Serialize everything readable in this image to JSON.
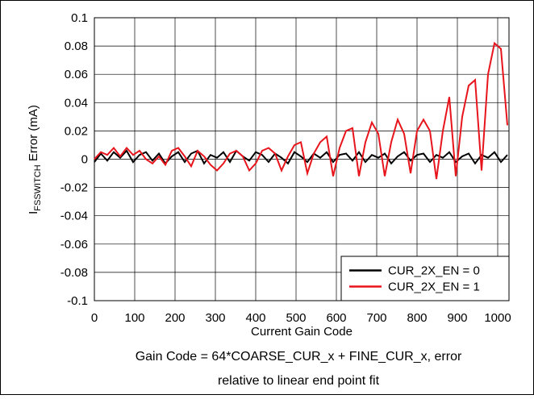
{
  "chart_data": {
    "type": "line",
    "y_label_parts": [
      "I",
      "FSSWITCH",
      " Error (mA)"
    ],
    "x_label": "Current Gain Code",
    "caption": [
      "Gain Code = 64*COARSE_CUR_x + FINE_CUR_x, error",
      "relative to linear end point fit"
    ],
    "x": [
      0,
      16,
      32,
      48,
      64,
      80,
      96,
      112,
      128,
      144,
      160,
      176,
      192,
      208,
      224,
      240,
      256,
      272,
      288,
      304,
      320,
      336,
      352,
      368,
      384,
      400,
      416,
      432,
      448,
      464,
      480,
      496,
      512,
      528,
      544,
      560,
      576,
      592,
      608,
      624,
      640,
      656,
      672,
      688,
      704,
      720,
      736,
      752,
      768,
      784,
      800,
      816,
      832,
      848,
      864,
      880,
      896,
      912,
      928,
      944,
      960,
      976,
      992,
      1008,
      1024
    ],
    "series": [
      {
        "name": "CUR_2X_EN = 0",
        "color": "#000000",
        "values": [
          -0.002,
          0.004,
          -0.001,
          0.005,
          0.001,
          0.006,
          -0.002,
          0.003,
          0.005,
          -0.001,
          0.004,
          -0.003,
          0.002,
          0.005,
          -0.002,
          0.004,
          0.006,
          -0.003,
          0.003,
          0.001,
          0.005,
          -0.002,
          0.006,
          0.002,
          -0.001,
          0.005,
          0.003,
          -0.002,
          0.004,
          0.001,
          -0.003,
          0.005,
          0.002,
          -0.002,
          0.004,
          0.001,
          0.005,
          -0.002,
          0.003,
          0.004,
          -0.001,
          0.005,
          -0.002,
          0.003,
          0.001,
          0.004,
          -0.003,
          0.002,
          0.005,
          -0.001,
          0.003,
          0.004,
          -0.002,
          0.003,
          0.001,
          0.005,
          -0.002,
          0.002,
          0.004,
          -0.003,
          0.003,
          0.001,
          0.005,
          -0.002,
          0.003
        ]
      },
      {
        "name": "CUR_2X_EN = 1",
        "color": "#e8141c",
        "values": [
          0,
          0.005,
          0.003,
          0.008,
          0.002,
          0.008,
          0.003,
          0.006,
          0,
          -0.003,
          0.002,
          -0.004,
          0.006,
          0.008,
          0.002,
          -0.005,
          0.006,
          0.002,
          -0.004,
          -0.008,
          -0.003,
          0.004,
          0.006,
          0.002,
          -0.008,
          -0.003,
          0.006,
          0.008,
          0.004,
          -0.008,
          0.002,
          0.01,
          0.012,
          -0.01,
          0.004,
          0.012,
          0.016,
          -0.012,
          0.008,
          0.02,
          0.022,
          -0.012,
          0.012,
          0.026,
          0.018,
          -0.012,
          0.012,
          0.028,
          0.018,
          -0.01,
          0.02,
          0.028,
          0.02,
          -0.014,
          0.02,
          0.044,
          -0.012,
          0.03,
          0.052,
          0.056,
          -0.008,
          0.06,
          0.082,
          0.078,
          0.024
        ]
      }
    ],
    "xlim": [
      0,
      1028
    ],
    "ylim": [
      -0.1,
      0.1
    ],
    "xticks": [
      0,
      100,
      200,
      300,
      400,
      500,
      600,
      700,
      800,
      900,
      1000
    ],
    "yticks": [
      -0.1,
      -0.08,
      -0.06,
      -0.04,
      -0.02,
      0,
      0.02,
      0.04,
      0.06,
      0.08,
      0.1
    ],
    "grid": true,
    "legend": "lower right"
  }
}
